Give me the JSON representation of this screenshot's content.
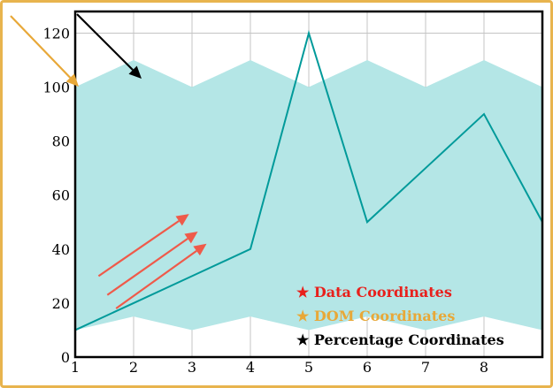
{
  "colors": {
    "frame": "#e8b44e",
    "band": "#b4e6e6",
    "line": "#009a9a",
    "grid": "#c4c4c4",
    "axes": "#000000",
    "arrow_red": "#ef5a4a",
    "arrow_orange": "#e8a838",
    "arrow_black": "#000000"
  },
  "chart_data": {
    "type": "line",
    "x": [
      1,
      2,
      3,
      4,
      5,
      6,
      7,
      8,
      9
    ],
    "xlim": [
      1,
      9
    ],
    "ylim": [
      0,
      128
    ],
    "xticks": [
      1,
      2,
      3,
      4,
      5,
      6,
      7,
      8
    ],
    "yticks": [
      0,
      20,
      40,
      60,
      80,
      100,
      120
    ],
    "grid": true,
    "series": [
      {
        "values": [
          10,
          20,
          30,
          40,
          120,
          50,
          70,
          90,
          50
        ]
      }
    ],
    "band": {
      "upper": [
        100,
        110,
        100,
        110,
        100,
        110,
        100,
        110,
        100
      ],
      "lower": [
        10,
        15,
        10,
        15,
        10,
        15,
        10,
        15,
        10
      ]
    },
    "legend": {
      "placement": "bottom-right",
      "entries": [
        {
          "symbol": "★",
          "label": "Data Coordinates",
          "color": "#e8201c"
        },
        {
          "symbol": "★",
          "label": "DOM Coordinates",
          "color": "#e8a838"
        },
        {
          "symbol": "★",
          "label": "Percentage Coordinates",
          "color": "#000000"
        }
      ]
    },
    "annotations": {
      "data_arrows": [
        {
          "from": [
            1.4,
            30
          ],
          "to": [
            2.95,
            53
          ]
        },
        {
          "from": [
            1.55,
            23
          ],
          "to": [
            3.1,
            46.5
          ]
        },
        {
          "from": [
            1.7,
            18
          ],
          "to": [
            3.25,
            42
          ]
        }
      ]
    }
  }
}
